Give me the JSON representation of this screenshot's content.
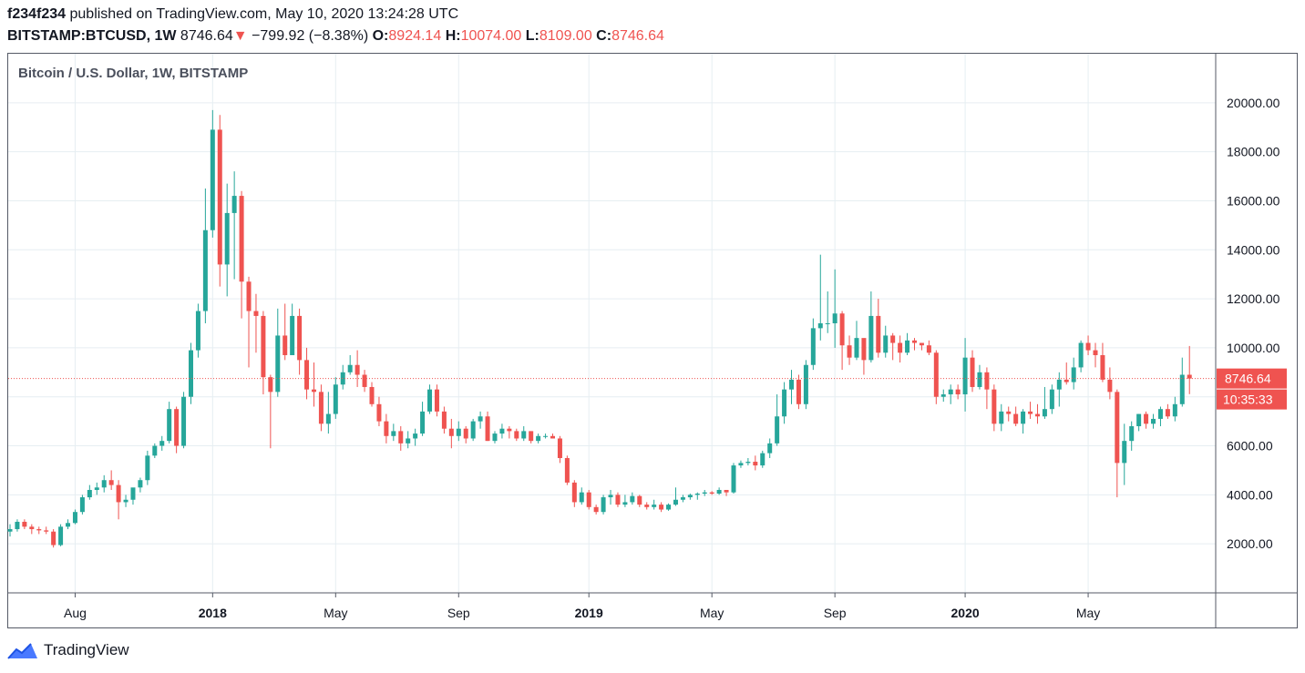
{
  "header": {
    "author": "f234f234",
    "published": "published on TradingView.com, May 10, 2020 13:24:28 UTC",
    "symbol": "BITSTAMP:BTCUSD, 1W",
    "last": "8746.64",
    "change_arrow": "▼",
    "change": "−799.92 (−8.38%)",
    "o_label": "O:",
    "o_value": "8924.14",
    "h_label": "H:",
    "h_value": "10074.00",
    "l_label": "L:",
    "l_value": "8109.00",
    "c_label": "C:",
    "c_value": "8746.64"
  },
  "chart": {
    "legend_title": "Bitcoin / U.S. Dollar, 1W, BITSTAMP",
    "price_badge": "8746.64",
    "countdown_badge": "10:35:33"
  },
  "colors": {
    "up": "#26a69a",
    "down": "#ef5350",
    "grid": "#e6eef2",
    "axis": "#555a66"
  },
  "footer": {
    "brand": "TradingView",
    "logo_icon": "tradingview-logo-icon"
  },
  "chart_data": {
    "type": "candlestick",
    "title": "Bitcoin / U.S. Dollar, 1W, BITSTAMP",
    "ylim": [
      0,
      22000
    ],
    "y_ticks": [
      2000,
      4000,
      6000,
      8000,
      10000,
      12000,
      14000,
      16000,
      18000,
      20000
    ],
    "y_tick_labels": [
      "2000.00",
      "4000.00",
      "6000.00",
      "8000.00",
      "10000.00",
      "12000.00",
      "14000.00",
      "16000.00",
      "18000.00",
      "20000.00"
    ],
    "x_ticks": [
      {
        "label": "Aug",
        "index": 9,
        "year": false
      },
      {
        "label": "2018",
        "index": 28,
        "year": true
      },
      {
        "label": "May",
        "index": 45,
        "year": false
      },
      {
        "label": "Sep",
        "index": 62,
        "year": false
      },
      {
        "label": "2019",
        "index": 80,
        "year": true
      },
      {
        "label": "May",
        "index": 97,
        "year": false
      },
      {
        "label": "Sep",
        "index": 114,
        "year": false
      },
      {
        "label": "2020",
        "index": 132,
        "year": true
      },
      {
        "label": "May",
        "index": 149,
        "year": false
      }
    ],
    "last_price": 8746.64,
    "candles": [
      [
        2500,
        2800,
        2300,
        2600
      ],
      [
        2600,
        3000,
        2500,
        2900
      ],
      [
        2900,
        3000,
        2600,
        2700
      ],
      [
        2700,
        2800,
        2400,
        2600
      ],
      [
        2600,
        2700,
        2400,
        2550
      ],
      [
        2550,
        2700,
        2400,
        2500
      ],
      [
        2500,
        2600,
        1850,
        1950
      ],
      [
        1950,
        2800,
        1900,
        2700
      ],
      [
        2700,
        3000,
        2600,
        2850
      ],
      [
        2850,
        3400,
        2800,
        3300
      ],
      [
        3300,
        4000,
        3200,
        3900
      ],
      [
        3900,
        4400,
        3800,
        4200
      ],
      [
        4200,
        4500,
        4000,
        4300
      ],
      [
        4300,
        4800,
        4100,
        4600
      ],
      [
        4600,
        5000,
        4200,
        4400
      ],
      [
        4400,
        4600,
        3000,
        3700
      ],
      [
        3700,
        4000,
        3500,
        3800
      ],
      [
        3800,
        4200,
        3600,
        4300
      ],
      [
        4300,
        4700,
        4100,
        4600
      ],
      [
        4600,
        5800,
        4400,
        5600
      ],
      [
        5600,
        6100,
        5500,
        6000
      ],
      [
        6000,
        6400,
        5800,
        6200
      ],
      [
        6200,
        7800,
        6100,
        7500
      ],
      [
        7500,
        7600,
        5700,
        6000
      ],
      [
        6000,
        8200,
        5900,
        8000
      ],
      [
        8000,
        10200,
        7700,
        9900
      ],
      [
        9900,
        11800,
        9600,
        11500
      ],
      [
        11500,
        16500,
        11000,
        14800
      ],
      [
        14800,
        19700,
        14500,
        18900
      ],
      [
        18900,
        19500,
        12500,
        13400
      ],
      [
        13400,
        16700,
        12100,
        15500
      ],
      [
        15500,
        17200,
        12800,
        16200
      ],
      [
        16200,
        16400,
        11200,
        12700
      ],
      [
        12700,
        12900,
        9200,
        11500
      ],
      [
        11500,
        12200,
        9800,
        11300
      ],
      [
        11300,
        11500,
        8100,
        8800
      ],
      [
        8800,
        8900,
        5900,
        8200
      ],
      [
        8200,
        11600,
        8000,
        10500
      ],
      [
        10500,
        11800,
        9500,
        9700
      ],
      [
        9700,
        11800,
        9800,
        11300
      ],
      [
        11300,
        11600,
        8900,
        9500
      ],
      [
        9500,
        10000,
        7900,
        8300
      ],
      [
        8300,
        9400,
        7600,
        8200
      ],
      [
        8200,
        8500,
        6600,
        6900
      ],
      [
        6900,
        8200,
        6500,
        7300
      ],
      [
        7300,
        8800,
        7100,
        8500
      ],
      [
        8500,
        9300,
        8300,
        9000
      ],
      [
        9000,
        9700,
        8900,
        9300
      ],
      [
        9300,
        9900,
        8400,
        8900
      ],
      [
        8900,
        9100,
        8200,
        8400
      ],
      [
        8400,
        8600,
        7600,
        7700
      ],
      [
        7700,
        8000,
        6800,
        7000
      ],
      [
        7000,
        7300,
        6100,
        6400
      ],
      [
        6400,
        6900,
        6200,
        6600
      ],
      [
        6600,
        6800,
        5800,
        6100
      ],
      [
        6100,
        6600,
        5900,
        6300
      ],
      [
        6300,
        6700,
        6000,
        6500
      ],
      [
        6500,
        7800,
        6400,
        7400
      ],
      [
        7400,
        8500,
        7300,
        8300
      ],
      [
        8300,
        8500,
        7200,
        7400
      ],
      [
        7400,
        7600,
        6500,
        6700
      ],
      [
        6700,
        7100,
        5900,
        6400
      ],
      [
        6400,
        7000,
        6200,
        6700
      ],
      [
        6700,
        6800,
        6100,
        6300
      ],
      [
        6300,
        7100,
        6200,
        7000
      ],
      [
        7000,
        7400,
        6700,
        7200
      ],
      [
        7200,
        7400,
        6200,
        6200
      ],
      [
        6200,
        6600,
        6100,
        6500
      ],
      [
        6500,
        6900,
        6300,
        6700
      ],
      [
        6700,
        6800,
        6300,
        6600
      ],
      [
        6600,
        6700,
        6200,
        6300
      ],
      [
        6300,
        6800,
        6200,
        6600
      ],
      [
        6600,
        6600,
        6100,
        6200
      ],
      [
        6200,
        6500,
        6100,
        6400
      ],
      [
        6400,
        6500,
        6300,
        6400
      ],
      [
        6400,
        6500,
        6300,
        6300
      ],
      [
        6300,
        6400,
        5300,
        5500
      ],
      [
        5500,
        5600,
        4400,
        4500
      ],
      [
        4500,
        4600,
        3500,
        3700
      ],
      [
        3700,
        4300,
        3600,
        4100
      ],
      [
        4100,
        4200,
        3400,
        3500
      ],
      [
        3500,
        3600,
        3200,
        3300
      ],
      [
        3300,
        4000,
        3200,
        3900
      ],
      [
        3900,
        4200,
        3600,
        4000
      ],
      [
        4000,
        4100,
        3500,
        3600
      ],
      [
        3600,
        4000,
        3500,
        3700
      ],
      [
        3700,
        4100,
        3600,
        3950
      ],
      [
        3950,
        4000,
        3500,
        3600
      ],
      [
        3600,
        3700,
        3400,
        3500
      ],
      [
        3500,
        3800,
        3400,
        3600
      ],
      [
        3600,
        3700,
        3300,
        3400
      ],
      [
        3400,
        3650,
        3350,
        3600
      ],
      [
        3600,
        4300,
        3550,
        3800
      ],
      [
        3800,
        4000,
        3700,
        3900
      ],
      [
        3900,
        4050,
        3800,
        4000
      ],
      [
        4000,
        4100,
        3800,
        4050
      ],
      [
        4050,
        4200,
        3950,
        4100
      ],
      [
        4100,
        4150,
        4000,
        4050
      ],
      [
        4050,
        4300,
        4000,
        4200
      ],
      [
        4200,
        4100,
        3950,
        4100
      ],
      [
        4100,
        5300,
        4050,
        5200
      ],
      [
        5200,
        5400,
        5100,
        5300
      ],
      [
        5300,
        5500,
        5200,
        5350
      ],
      [
        5350,
        5600,
        5000,
        5200
      ],
      [
        5200,
        5800,
        5100,
        5700
      ],
      [
        5700,
        6300,
        5500,
        6100
      ],
      [
        6100,
        8100,
        6000,
        7200
      ],
      [
        7200,
        8600,
        6900,
        8300
      ],
      [
        8300,
        9100,
        7700,
        8700
      ],
      [
        8700,
        8900,
        7500,
        7700
      ],
      [
        7700,
        9500,
        7500,
        9300
      ],
      [
        9300,
        11200,
        9100,
        10800
      ],
      [
        10800,
        13800,
        10300,
        11000
      ],
      [
        11000,
        12300,
        10600,
        11000
      ],
      [
        11000,
        13200,
        10000,
        11400
      ],
      [
        11400,
        11500,
        9100,
        10100
      ],
      [
        10100,
        10500,
        9300,
        9600
      ],
      [
        9600,
        11100,
        9500,
        10400
      ],
      [
        10400,
        10300,
        8900,
        9500
      ],
      [
        9500,
        12300,
        9400,
        11300
      ],
      [
        11300,
        12000,
        9600,
        9800
      ],
      [
        9800,
        10900,
        9600,
        10500
      ],
      [
        10500,
        10600,
        9500,
        10200
      ],
      [
        10200,
        10500,
        9400,
        9800
      ],
      [
        9800,
        10600,
        9700,
        10300
      ],
      [
        10300,
        10400,
        9900,
        10200
      ],
      [
        10200,
        10200,
        9900,
        10100
      ],
      [
        10100,
        10300,
        9700,
        9800
      ],
      [
        9800,
        9900,
        7700,
        8000
      ],
      [
        8000,
        8300,
        7800,
        8100
      ],
      [
        8100,
        8500,
        7700,
        8300
      ],
      [
        8300,
        8500,
        7900,
        8100
      ],
      [
        8100,
        10400,
        7400,
        9600
      ],
      [
        9600,
        9900,
        8200,
        8400
      ],
      [
        8400,
        9300,
        8300,
        9000
      ],
      [
        9000,
        9200,
        7500,
        8300
      ],
      [
        8300,
        8500,
        6600,
        6900
      ],
      [
        6900,
        7700,
        6600,
        7400
      ],
      [
        7400,
        7600,
        7000,
        7300
      ],
      [
        7300,
        7600,
        6800,
        6900
      ],
      [
        6900,
        7500,
        6500,
        7400
      ],
      [
        7400,
        7800,
        7100,
        7300
      ],
      [
        7300,
        7700,
        6900,
        7200
      ],
      [
        7200,
        8400,
        7100,
        7500
      ],
      [
        7500,
        8500,
        7300,
        8300
      ],
      [
        8300,
        9000,
        7600,
        8700
      ],
      [
        8700,
        9400,
        8500,
        8600
      ],
      [
        8600,
        9600,
        8300,
        9200
      ],
      [
        9200,
        10300,
        9000,
        10200
      ],
      [
        10200,
        10500,
        9700,
        9900
      ],
      [
        9900,
        10200,
        9200,
        9700
      ],
      [
        9700,
        10200,
        8600,
        8700
      ],
      [
        8700,
        9200,
        7900,
        8200
      ],
      [
        8200,
        8300,
        3900,
        5300
      ],
      [
        5300,
        6900,
        4400,
        6200
      ],
      [
        6200,
        7000,
        5800,
        6800
      ],
      [
        6800,
        7300,
        6600,
        7300
      ],
      [
        7300,
        7400,
        6700,
        6900
      ],
      [
        6900,
        7300,
        6700,
        7100
      ],
      [
        7100,
        7600,
        6800,
        7500
      ],
      [
        7500,
        7700,
        7100,
        7200
      ],
      [
        7200,
        8000,
        7000,
        7700
      ],
      [
        7700,
        9600,
        7600,
        8900
      ],
      [
        8900,
        10074,
        8109,
        8746.64
      ]
    ]
  }
}
